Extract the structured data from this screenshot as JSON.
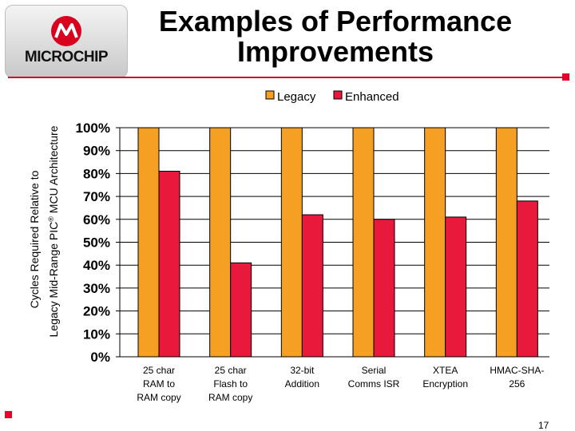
{
  "slide": {
    "title_line1": "Examples of Performance",
    "title_line2": "Improvements",
    "page_number": "17"
  },
  "logo": {
    "text": "MICROCHIP",
    "icon": "microchip-logo-icon"
  },
  "colors": {
    "legacy": "#f5a023",
    "enhanced": "#e8193a",
    "accent": "#c8102e"
  },
  "chart_data": {
    "type": "bar",
    "title": "",
    "ylabel_line1": "Cycles Required Relative to",
    "ylabel_line2_prefix": "Legacy Mid-Range PIC",
    "ylabel_line2_sup": "®",
    "ylabel_line2_suffix": " MCU Architecture",
    "xlabel": "",
    "categories": [
      [
        "25 char",
        "RAM to",
        "RAM copy"
      ],
      [
        "25 char",
        "Flash to",
        "RAM copy"
      ],
      [
        "32-bit",
        "Addition"
      ],
      [
        "Serial",
        "Comms ISR"
      ],
      [
        "XTEA",
        "Encryption"
      ],
      [
        "HMAC-SHA-",
        "256"
      ]
    ],
    "series": [
      {
        "name": "Legacy",
        "values": [
          100,
          100,
          100,
          100,
          100,
          100
        ]
      },
      {
        "name": "Enhanced",
        "values": [
          81,
          41,
          62,
          60,
          61,
          68
        ]
      }
    ],
    "ylim": [
      0,
      100
    ],
    "yticks": [
      "0%",
      "10%",
      "20%",
      "30%",
      "40%",
      "50%",
      "60%",
      "70%",
      "80%",
      "90%",
      "100%"
    ],
    "grid": true,
    "legend_position": "top-right"
  }
}
